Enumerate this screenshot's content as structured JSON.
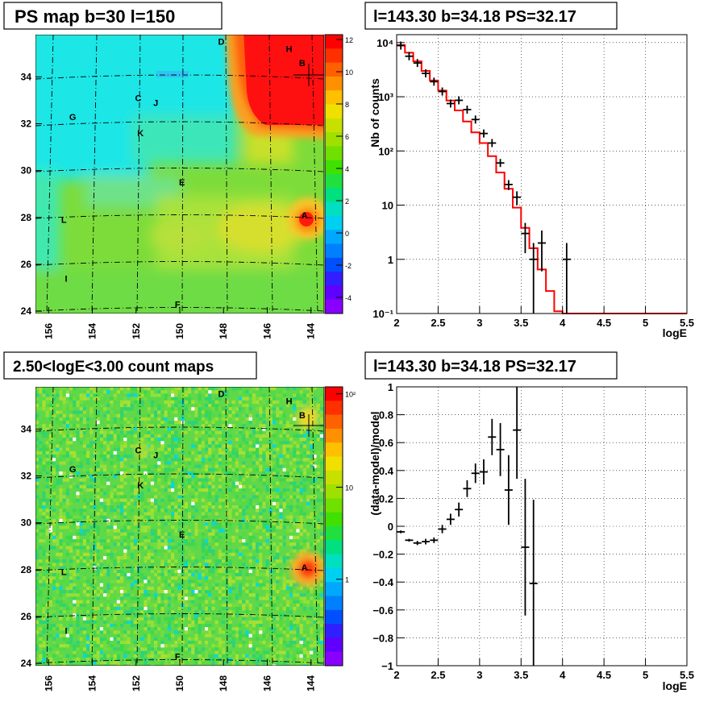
{
  "titles": {
    "psmap": "PS map b=30 l=150",
    "spectrum": "l=143.30 b=34.18 PS=32.17",
    "countmap": "2.50<logE<3.00 count maps",
    "residual": "l=143.30 b=34.18 PS=32.17"
  },
  "map_axes": {
    "x_ticks": [
      "156",
      "154",
      "152",
      "150",
      "148",
      "146",
      "144"
    ],
    "y_ticks": [
      "24",
      "26",
      "28",
      "30",
      "32",
      "34"
    ]
  },
  "psmap_colorbar": [
    "12",
    "10",
    "8",
    "6",
    "4",
    "2",
    "0",
    "-2",
    "-4"
  ],
  "countmap_colorbar": [
    "10²",
    "10",
    "1"
  ],
  "sources": [
    {
      "label": "D",
      "l": 148.1,
      "b": 35.5
    },
    {
      "label": "H",
      "l": 145.0,
      "b": 35.2
    },
    {
      "label": "B",
      "l": 144.4,
      "b": 34.6
    },
    {
      "label": "C",
      "l": 151.9,
      "b": 33.1
    },
    {
      "label": "J",
      "l": 151.1,
      "b": 32.9
    },
    {
      "label": "G",
      "l": 154.9,
      "b": 32.3
    },
    {
      "label": "K",
      "l": 151.8,
      "b": 31.6
    },
    {
      "label": "E",
      "l": 149.9,
      "b": 29.5
    },
    {
      "label": "L",
      "l": 155.3,
      "b": 27.9
    },
    {
      "label": "A",
      "l": 144.3,
      "b": 28.1
    },
    {
      "label": "I",
      "l": 155.2,
      "b": 25.4
    },
    {
      "label": "F",
      "l": 150.1,
      "b": 24.3
    }
  ],
  "chart_data": [
    {
      "type": "line",
      "title": "l=143.30 b=34.18 PS=32.17",
      "xlabel": "logE",
      "ylabel": "Nb of counts",
      "xlim": [
        2,
        5.5
      ],
      "ylim": [
        0.1,
        14000
      ],
      "log_y": true,
      "grid": true,
      "x_ticks": [
        "2",
        "2.5",
        "3",
        "3.5",
        "4",
        "4.5",
        "5",
        "5.5"
      ],
      "y_ticks": [
        "10⁻¹",
        "1",
        "10",
        "10²",
        "10³",
        "10⁴"
      ],
      "data_points": [
        {
          "x": 2.05,
          "y": 8800,
          "err": 90
        },
        {
          "x": 2.15,
          "y": 5600,
          "err": 70
        },
        {
          "x": 2.25,
          "y": 4200,
          "err": 60
        },
        {
          "x": 2.35,
          "y": 2700,
          "err": 50
        },
        {
          "x": 2.45,
          "y": 1900,
          "err": 40
        },
        {
          "x": 2.55,
          "y": 1250,
          "err": 35
        },
        {
          "x": 2.65,
          "y": 750,
          "err": 27
        },
        {
          "x": 2.75,
          "y": 860,
          "err": 29
        },
        {
          "x": 2.85,
          "y": 580,
          "err": 24
        },
        {
          "x": 2.95,
          "y": 380,
          "err": 20
        },
        {
          "x": 3.05,
          "y": 210,
          "err": 15
        },
        {
          "x": 3.15,
          "y": 140,
          "err": 12
        },
        {
          "x": 3.25,
          "y": 60,
          "err": 8
        },
        {
          "x": 3.35,
          "y": 24,
          "err": 5
        },
        {
          "x": 3.45,
          "y": 14,
          "err": 4
        },
        {
          "x": 3.55,
          "y": 3,
          "err": 1.7
        },
        {
          "x": 3.65,
          "y": 1,
          "err": 1
        },
        {
          "x": 3.75,
          "y": 2,
          "err": 1.4
        },
        {
          "x": 4.05,
          "y": 1,
          "err": 1
        }
      ],
      "model_steps": [
        {
          "x0": 2.0,
          "x1": 2.1,
          "y": 9000
        },
        {
          "x0": 2.1,
          "x1": 2.2,
          "y": 6500
        },
        {
          "x0": 2.2,
          "x1": 2.3,
          "y": 4500
        },
        {
          "x0": 2.3,
          "x1": 2.4,
          "y": 3000
        },
        {
          "x0": 2.4,
          "x1": 2.5,
          "y": 2000
        },
        {
          "x0": 2.5,
          "x1": 2.6,
          "y": 1300
        },
        {
          "x0": 2.6,
          "x1": 2.7,
          "y": 850
        },
        {
          "x0": 2.7,
          "x1": 2.8,
          "y": 560
        },
        {
          "x0": 2.8,
          "x1": 2.9,
          "y": 350
        },
        {
          "x0": 2.9,
          "x1": 3.0,
          "y": 220
        },
        {
          "x0": 3.0,
          "x1": 3.1,
          "y": 140
        },
        {
          "x0": 3.1,
          "x1": 3.2,
          "y": 80
        },
        {
          "x0": 3.2,
          "x1": 3.3,
          "y": 40
        },
        {
          "x0": 3.3,
          "x1": 3.4,
          "y": 20
        },
        {
          "x0": 3.4,
          "x1": 3.5,
          "y": 9
        },
        {
          "x0": 3.5,
          "x1": 3.6,
          "y": 3.8
        },
        {
          "x0": 3.6,
          "x1": 3.7,
          "y": 1.6
        },
        {
          "x0": 3.7,
          "x1": 3.8,
          "y": 0.65
        },
        {
          "x0": 3.8,
          "x1": 3.9,
          "y": 0.26
        },
        {
          "x0": 3.9,
          "x1": 4.0,
          "y": 0.11
        },
        {
          "x0": 4.0,
          "x1": 5.5,
          "y": 0.1
        }
      ],
      "colors": {
        "data": "#000000",
        "model": "#ff0000"
      }
    },
    {
      "type": "scatter",
      "title": "l=143.30 b=34.18 PS=32.17",
      "xlabel": "logE",
      "ylabel": "(data-model)/model",
      "xlim": [
        2,
        5.5
      ],
      "ylim": [
        -1,
        1
      ],
      "grid": true,
      "x_ticks": [
        "2",
        "2.5",
        "3",
        "3.5",
        "4",
        "4.5",
        "5",
        "5.5"
      ],
      "y_ticks": [
        "−1",
        "−0.8",
        "−0.6",
        "−0.4",
        "−0.2",
        "0",
        "0.2",
        "0.4",
        "0.6",
        "0.8",
        "1"
      ],
      "points": [
        {
          "x": 2.05,
          "y": -0.04,
          "err": 0.01
        },
        {
          "x": 2.15,
          "y": -0.1,
          "err": 0.01
        },
        {
          "x": 2.25,
          "y": -0.12,
          "err": 0.015
        },
        {
          "x": 2.35,
          "y": -0.11,
          "err": 0.02
        },
        {
          "x": 2.45,
          "y": -0.1,
          "err": 0.02
        },
        {
          "x": 2.55,
          "y": -0.02,
          "err": 0.03
        },
        {
          "x": 2.65,
          "y": 0.05,
          "err": 0.04
        },
        {
          "x": 2.75,
          "y": 0.12,
          "err": 0.05
        },
        {
          "x": 2.85,
          "y": 0.27,
          "err": 0.06
        },
        {
          "x": 2.95,
          "y": 0.38,
          "err": 0.07
        },
        {
          "x": 3.05,
          "y": 0.39,
          "err": 0.09
        },
        {
          "x": 3.15,
          "y": 0.64,
          "err": 0.13
        },
        {
          "x": 3.25,
          "y": 0.55,
          "err": 0.19
        },
        {
          "x": 3.35,
          "y": 0.26,
          "err": 0.25
        },
        {
          "x": 3.45,
          "y": 0.69,
          "err": 0.35
        },
        {
          "x": 3.55,
          "y": -0.15,
          "err": 0.49
        },
        {
          "x": 3.65,
          "y": -0.41,
          "err": 0.6
        }
      ],
      "colors": {
        "data": "#000000"
      }
    }
  ]
}
